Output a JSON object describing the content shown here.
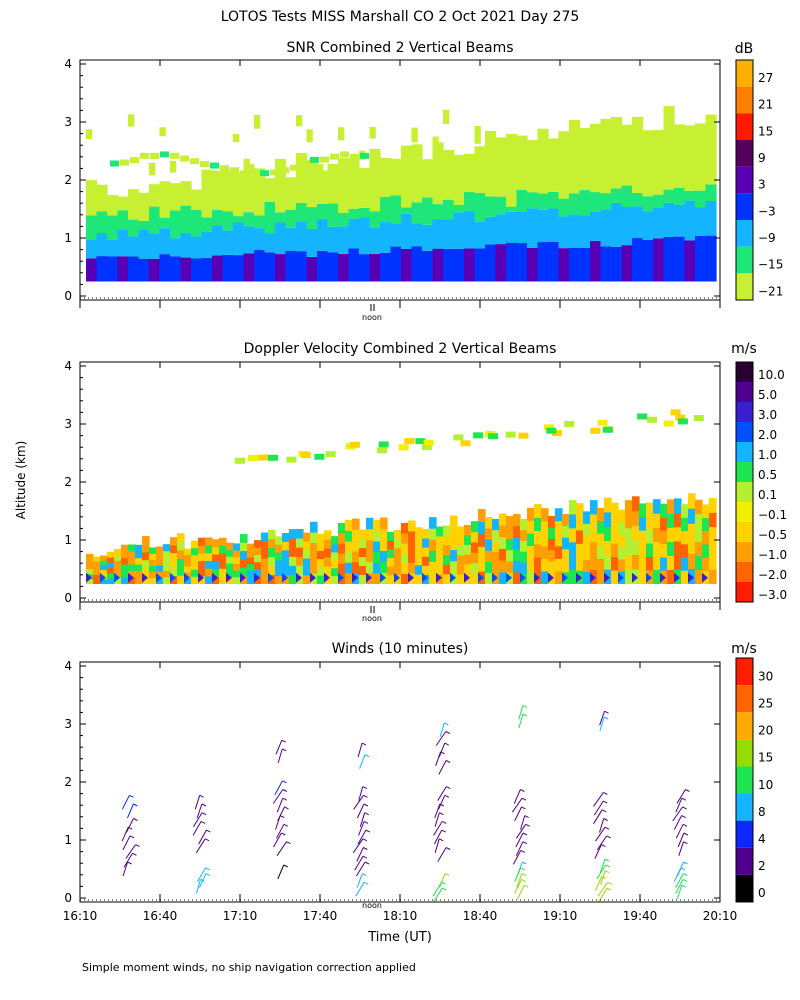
{
  "page": {
    "title": "LOTOS Tests MISS Marshall CO   2 Oct 2021 Day 275",
    "footnote": "Simple moment winds, no ship navigation correction applied",
    "shared_ylabel": "Altitude (km)"
  },
  "chart_data": [
    {
      "type": "heatmap",
      "title": "SNR Combined 2 Vertical Beams",
      "xlabel": "",
      "ylabel": "Altitude (km)",
      "ylim": [
        0,
        4
      ],
      "y_ticks": [
        "0",
        "1",
        "2",
        "3",
        "4"
      ],
      "x_range_hours": [
        16.1667,
        20.1667
      ],
      "noon_label": "noon",
      "colorbar": {
        "unit": "dB",
        "labels": [
          "27",
          "21",
          "15",
          "9",
          "3",
          "−3",
          "−9",
          "−15",
          "−21"
        ],
        "colors": [
          "#ffb000",
          "#ff7f00",
          "#ff1a00",
          "#55005f",
          "#5a00b4",
          "#0033ff",
          "#14b4ff",
          "#1ee678",
          "#c8f032"
        ]
      },
      "profile": [
        {
          "alt": 0.6,
          "level": 1
        },
        {
          "alt": 0.95,
          "level": 2
        },
        {
          "alt": 1.3,
          "level": 3
        },
        {
          "alt": 1.8,
          "level": 4
        },
        {
          "alt": 2.5,
          "level": 5
        }
      ]
    },
    {
      "type": "heatmap",
      "title": "Doppler Velocity Combined 2 Vertical Beams",
      "xlabel": "",
      "ylabel": "Altitude (km)",
      "ylim": [
        0,
        4
      ],
      "y_ticks": [
        "0",
        "1",
        "2",
        "3",
        "4"
      ],
      "noon_label": "noon",
      "colorbar": {
        "unit": "m/s",
        "labels": [
          "10.0",
          "5.0",
          "3.0",
          "2.0",
          "1.0",
          "0.5",
          "0.1",
          "−0.1",
          "−0.5",
          "−1.0",
          "−2.0",
          "−3.0"
        ],
        "colors": [
          "#2a0030",
          "#50008c",
          "#3c1ed2",
          "#0050ff",
          "#14b4ff",
          "#1ee650",
          "#b4f032",
          "#f0f000",
          "#ffd200",
          "#ffa000",
          "#ff6400",
          "#ff1e00"
        ]
      }
    },
    {
      "type": "scatter",
      "title": "Winds (10 minutes)",
      "xlabel": "Time (UT)",
      "ylabel": "Altitude (km)",
      "ylim": [
        0,
        4
      ],
      "y_ticks": [
        "0",
        "1",
        "2",
        "3",
        "4"
      ],
      "x_ticks": [
        "16:10",
        "16:40",
        "17:10",
        "17:40",
        "18:10",
        "18:40",
        "19:10",
        "19:40",
        "20:10"
      ],
      "noon_label": "noon",
      "colorbar": {
        "unit": "m/s",
        "labels": [
          "30",
          "25",
          "20",
          "15",
          "10",
          "8",
          "4",
          "2",
          "0"
        ],
        "colors": [
          "#ff1e00",
          "#ff6400",
          "#ffaa00",
          "#96dc00",
          "#1ee650",
          "#14b4ff",
          "#0a28ff",
          "#50008c",
          "#000000"
        ]
      },
      "profiles": [
        {
          "time": "16:28",
          "points": [
            [
              1.65,
              4
            ],
            [
              1.5,
              4
            ],
            [
              1.25,
              3
            ],
            [
              1.1,
              3
            ],
            [
              0.95,
              3
            ],
            [
              0.8,
              3
            ],
            [
              0.65,
              3
            ],
            [
              0.5,
              3
            ]
          ]
        },
        {
          "time": "16:55",
          "points": [
            [
              1.65,
              3
            ],
            [
              1.5,
              3
            ],
            [
              1.35,
              3
            ],
            [
              1.2,
              3
            ],
            [
              1.05,
              3
            ],
            [
              0.9,
              3
            ],
            [
              0.2,
              9
            ],
            [
              0.3,
              9
            ],
            [
              0.4,
              9
            ]
          ]
        },
        {
          "time": "17:25",
          "points": [
            [
              2.6,
              3
            ],
            [
              2.45,
              3
            ],
            [
              1.9,
              4
            ],
            [
              1.75,
              3
            ],
            [
              1.6,
              3
            ],
            [
              1.45,
              3
            ],
            [
              1.3,
              2
            ],
            [
              1.15,
              2
            ],
            [
              1.0,
              2
            ],
            [
              0.85,
              2
            ],
            [
              0.45,
              0
            ]
          ]
        },
        {
          "time": "17:55",
          "points": [
            [
              2.55,
              3
            ],
            [
              2.35,
              9
            ],
            [
              1.8,
              3
            ],
            [
              1.65,
              2
            ],
            [
              1.5,
              2
            ],
            [
              1.35,
              2
            ],
            [
              1.2,
              2
            ],
            [
              1.05,
              2
            ],
            [
              0.9,
              2
            ],
            [
              0.75,
              2
            ],
            [
              0.6,
              2
            ],
            [
              0.5,
              2
            ],
            [
              0.15,
              9
            ],
            [
              0.3,
              9
            ]
          ]
        },
        {
          "time": "18:25",
          "points": [
            [
              2.9,
              9
            ],
            [
              2.75,
              3
            ],
            [
              2.55,
              3
            ],
            [
              2.4,
              3
            ],
            [
              2.25,
              3
            ],
            [
              1.8,
              2
            ],
            [
              1.65,
              2
            ],
            [
              1.5,
              2
            ],
            [
              1.35,
              2
            ],
            [
              1.2,
              2
            ],
            [
              1.05,
              2
            ],
            [
              0.9,
              2
            ],
            [
              0.75,
              2
            ],
            [
              0.3,
              15
            ],
            [
              0.15,
              13
            ],
            [
              0.05,
              13
            ]
          ]
        },
        {
          "time": "18:55",
          "points": [
            [
              3.2,
              13
            ],
            [
              3.05,
              13
            ],
            [
              1.75,
              2
            ],
            [
              1.6,
              2
            ],
            [
              1.45,
              2
            ],
            [
              1.3,
              2
            ],
            [
              1.15,
              2
            ],
            [
              1.0,
              2
            ],
            [
              0.85,
              2
            ],
            [
              0.7,
              2
            ],
            [
              0.5,
              9
            ],
            [
              0.4,
              13
            ],
            [
              0.3,
              15
            ],
            [
              0.2,
              15
            ],
            [
              0.1,
              15
            ]
          ]
        },
        {
          "time": "19:25",
          "points": [
            [
              3.1,
              3
            ],
            [
              3.0,
              9
            ],
            [
              1.7,
              2
            ],
            [
              1.55,
              2
            ],
            [
              1.4,
              2
            ],
            [
              1.25,
              2
            ],
            [
              1.1,
              2
            ],
            [
              0.95,
              2
            ],
            [
              0.8,
              2
            ],
            [
              0.55,
              13
            ],
            [
              0.45,
              13
            ],
            [
              0.35,
              15
            ],
            [
              0.25,
              15
            ],
            [
              0.15,
              15
            ],
            [
              0.05,
              15
            ]
          ]
        },
        {
          "time": "19:55",
          "points": [
            [
              1.75,
              2
            ],
            [
              1.6,
              2
            ],
            [
              1.45,
              2
            ],
            [
              1.3,
              2
            ],
            [
              1.15,
              2
            ],
            [
              1.0,
              3
            ],
            [
              0.85,
              3
            ],
            [
              0.5,
              9
            ],
            [
              0.4,
              9
            ],
            [
              0.3,
              13
            ],
            [
              0.2,
              13
            ],
            [
              0.1,
              13
            ]
          ]
        }
      ]
    }
  ]
}
